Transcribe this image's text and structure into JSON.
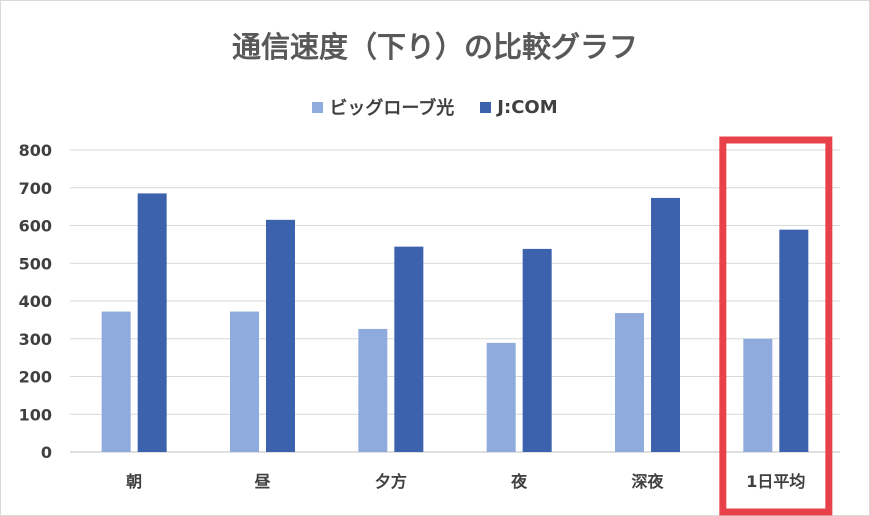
{
  "chart_data": {
    "type": "bar",
    "title": "通信速度（下り）の比較グラフ",
    "categories": [
      "朝",
      "昼",
      "夕方",
      "夜",
      "深夜",
      "1日平均"
    ],
    "series": [
      {
        "name": "ビッグローブ光",
        "values": [
          372,
          372,
          326,
          289,
          368,
          300
        ],
        "color": "#8faadc"
      },
      {
        "name": "J:COM",
        "values": [
          685,
          615,
          544,
          538,
          673,
          589
        ],
        "color": "#3c62ad"
      }
    ],
    "yticks": [
      0,
      100,
      200,
      300,
      400,
      500,
      600,
      700,
      800
    ],
    "ylim": [
      0,
      800
    ],
    "xlabel": "",
    "ylabel": "",
    "grid": true,
    "legend_position": "top",
    "highlight_category": "1日平均",
    "highlight_color": "#e8414a"
  }
}
